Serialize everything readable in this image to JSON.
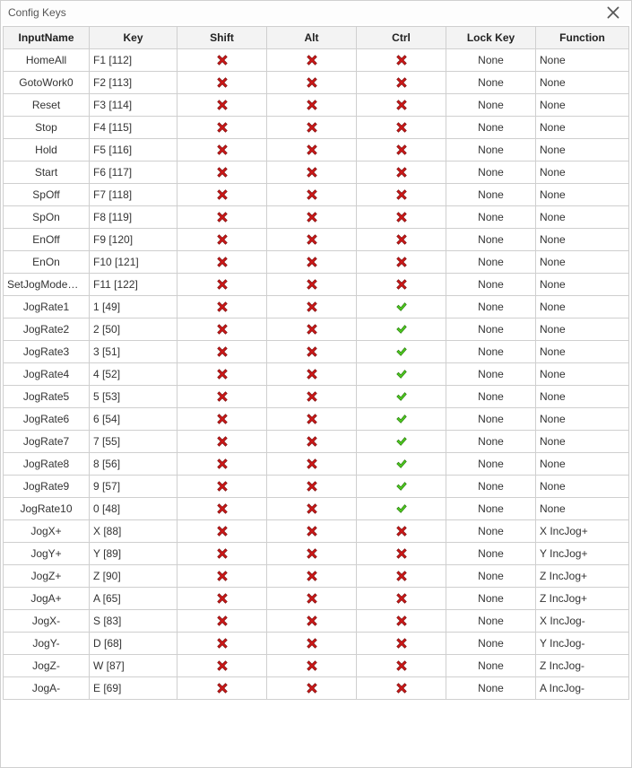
{
  "window": {
    "title": "Config Keys"
  },
  "columns": [
    "InputName",
    "Key",
    "Shift",
    "Alt",
    "Ctrl",
    "Lock Key",
    "Function"
  ],
  "rows": [
    {
      "input": "HomeAll",
      "key": "F1 [112]",
      "shift": false,
      "alt": false,
      "ctrl": false,
      "lock": "None",
      "func": "None"
    },
    {
      "input": "GotoWork0",
      "key": "F2 [113]",
      "shift": false,
      "alt": false,
      "ctrl": false,
      "lock": "None",
      "func": "None"
    },
    {
      "input": "Reset",
      "key": "F3 [114]",
      "shift": false,
      "alt": false,
      "ctrl": false,
      "lock": "None",
      "func": "None"
    },
    {
      "input": "Stop",
      "key": "F4 [115]",
      "shift": false,
      "alt": false,
      "ctrl": false,
      "lock": "None",
      "func": "None"
    },
    {
      "input": "Hold",
      "key": "F5 [116]",
      "shift": false,
      "alt": false,
      "ctrl": false,
      "lock": "None",
      "func": "None"
    },
    {
      "input": "Start",
      "key": "F6 [117]",
      "shift": false,
      "alt": false,
      "ctrl": false,
      "lock": "None",
      "func": "None"
    },
    {
      "input": "SpOff",
      "key": "F7 [118]",
      "shift": false,
      "alt": false,
      "ctrl": false,
      "lock": "None",
      "func": "None"
    },
    {
      "input": "SpOn",
      "key": "F8 [119]",
      "shift": false,
      "alt": false,
      "ctrl": false,
      "lock": "None",
      "func": "None"
    },
    {
      "input": "EnOff",
      "key": "F9 [120]",
      "shift": false,
      "alt": false,
      "ctrl": false,
      "lock": "None",
      "func": "None"
    },
    {
      "input": "EnOn",
      "key": "F10 [121]",
      "shift": false,
      "alt": false,
      "ctrl": false,
      "lock": "None",
      "func": "None"
    },
    {
      "input": "SetJogModeStep",
      "key": "F11 [122]",
      "shift": false,
      "alt": false,
      "ctrl": false,
      "lock": "None",
      "func": "None"
    },
    {
      "input": "JogRate1",
      "key": "1 [49]",
      "shift": false,
      "alt": false,
      "ctrl": true,
      "lock": "None",
      "func": "None"
    },
    {
      "input": "JogRate2",
      "key": "2 [50]",
      "shift": false,
      "alt": false,
      "ctrl": true,
      "lock": "None",
      "func": "None"
    },
    {
      "input": "JogRate3",
      "key": "3 [51]",
      "shift": false,
      "alt": false,
      "ctrl": true,
      "lock": "None",
      "func": "None"
    },
    {
      "input": "JogRate4",
      "key": "4 [52]",
      "shift": false,
      "alt": false,
      "ctrl": true,
      "lock": "None",
      "func": "None"
    },
    {
      "input": "JogRate5",
      "key": "5 [53]",
      "shift": false,
      "alt": false,
      "ctrl": true,
      "lock": "None",
      "func": "None"
    },
    {
      "input": "JogRate6",
      "key": "6 [54]",
      "shift": false,
      "alt": false,
      "ctrl": true,
      "lock": "None",
      "func": "None"
    },
    {
      "input": "JogRate7",
      "key": "7 [55]",
      "shift": false,
      "alt": false,
      "ctrl": true,
      "lock": "None",
      "func": "None"
    },
    {
      "input": "JogRate8",
      "key": "8 [56]",
      "shift": false,
      "alt": false,
      "ctrl": true,
      "lock": "None",
      "func": "None"
    },
    {
      "input": "JogRate9",
      "key": "9 [57]",
      "shift": false,
      "alt": false,
      "ctrl": true,
      "lock": "None",
      "func": "None"
    },
    {
      "input": "JogRate10",
      "key": "0 [48]",
      "shift": false,
      "alt": false,
      "ctrl": true,
      "lock": "None",
      "func": "None"
    },
    {
      "input": "JogX+",
      "key": "X [88]",
      "shift": false,
      "alt": false,
      "ctrl": false,
      "lock": "None",
      "func": "X IncJog+"
    },
    {
      "input": "JogY+",
      "key": "Y [89]",
      "shift": false,
      "alt": false,
      "ctrl": false,
      "lock": "None",
      "func": "Y IncJog+"
    },
    {
      "input": "JogZ+",
      "key": "Z [90]",
      "shift": false,
      "alt": false,
      "ctrl": false,
      "lock": "None",
      "func": "Z IncJog+"
    },
    {
      "input": "JogA+",
      "key": "A [65]",
      "shift": false,
      "alt": false,
      "ctrl": false,
      "lock": "None",
      "func": "Z IncJog+"
    },
    {
      "input": "JogX-",
      "key": "S [83]",
      "shift": false,
      "alt": false,
      "ctrl": false,
      "lock": "None",
      "func": "X IncJog-"
    },
    {
      "input": "JogY-",
      "key": "D [68]",
      "shift": false,
      "alt": false,
      "ctrl": false,
      "lock": "None",
      "func": "Y IncJog-"
    },
    {
      "input": "JogZ-",
      "key": "W [87]",
      "shift": false,
      "alt": false,
      "ctrl": false,
      "lock": "None",
      "func": "Z IncJog-"
    },
    {
      "input": "JogA-",
      "key": "E [69]",
      "shift": false,
      "alt": false,
      "ctrl": false,
      "lock": "None",
      "func": "A IncJog-"
    }
  ],
  "icons": {
    "x_fill": "#d01818",
    "x_stroke": "#7a0a0a",
    "check_fill": "#4fcc1f",
    "check_stroke": "#2a7a10"
  }
}
